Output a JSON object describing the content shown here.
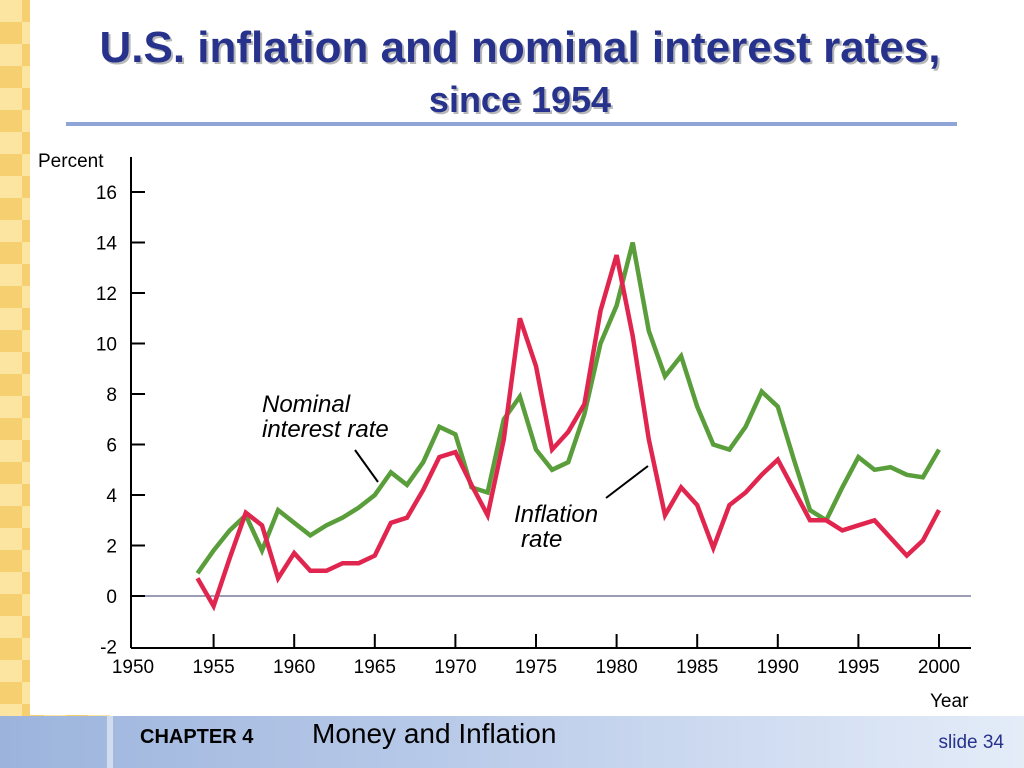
{
  "slide": {
    "title_line1": "U.S. inflation and nominal interest rates,",
    "title_line2": "since 1954",
    "chapter_label": "CHAPTER 4",
    "chapter_title": "Money and Inflation",
    "slide_number": "slide 34"
  },
  "colors": {
    "title": "#26328c",
    "nominal_rate": "#5a9e3c",
    "inflation_rate": "#e0264e",
    "checker_light": "#fbe5a0",
    "checker_dark": "#f6d070"
  },
  "chart_data": {
    "type": "line",
    "title": "",
    "xlabel": "Year",
    "ylabel": "Percent",
    "xlim": [
      1950,
      2002
    ],
    "ylim": [
      -2,
      16
    ],
    "x_ticks": [
      1950,
      1955,
      1960,
      1965,
      1970,
      1975,
      1980,
      1985,
      1990,
      1995,
      2000
    ],
    "x_tick_labels": [
      "1950",
      "1955",
      "1960",
      "1965",
      "1970",
      "1975",
      "1980",
      "1985",
      "1990",
      "1995",
      "2000"
    ],
    "y_ticks": [
      -2,
      0,
      2,
      4,
      6,
      8,
      10,
      12,
      14,
      16
    ],
    "y_tick_labels": [
      "-2",
      "0",
      "2",
      "4",
      "6",
      "8",
      "10",
      "12",
      "14",
      "16"
    ],
    "grid": false,
    "series": [
      {
        "name": "Nominal interest rate",
        "label_line1": "Nominal",
        "label_line2": "interest rate",
        "x": [
          1954,
          1955,
          1956,
          1957,
          1958,
          1959,
          1960,
          1961,
          1962,
          1963,
          1964,
          1965,
          1966,
          1967,
          1968,
          1969,
          1970,
          1971,
          1972,
          1973,
          1974,
          1975,
          1976,
          1977,
          1978,
          1979,
          1980,
          1981,
          1982,
          1983,
          1984,
          1985,
          1986,
          1987,
          1988,
          1989,
          1990,
          1991,
          1992,
          1993,
          1994,
          1995,
          1996,
          1997,
          1998,
          1999,
          2000
        ],
        "y": [
          0.9,
          1.8,
          2.6,
          3.2,
          1.8,
          3.4,
          2.9,
          2.4,
          2.8,
          3.1,
          3.5,
          4.0,
          4.9,
          4.4,
          5.3,
          6.7,
          6.4,
          4.3,
          4.1,
          7.0,
          7.9,
          5.8,
          5.0,
          5.3,
          7.2,
          10.0,
          11.5,
          14.0,
          10.5,
          8.7,
          9.5,
          7.5,
          6.0,
          5.8,
          6.7,
          8.1,
          7.5,
          5.4,
          3.4,
          3.0,
          4.3,
          5.5,
          5.0,
          5.1,
          4.8,
          4.7,
          5.8
        ]
      },
      {
        "name": "Inflation rate",
        "label_line1": "Inflation",
        "label_line2": "rate",
        "x": [
          1954,
          1955,
          1956,
          1957,
          1958,
          1959,
          1960,
          1961,
          1962,
          1963,
          1964,
          1965,
          1966,
          1967,
          1968,
          1969,
          1970,
          1971,
          1972,
          1973,
          1974,
          1975,
          1976,
          1977,
          1978,
          1979,
          1980,
          1981,
          1982,
          1983,
          1984,
          1985,
          1986,
          1987,
          1988,
          1989,
          1990,
          1991,
          1992,
          1993,
          1994,
          1995,
          1996,
          1997,
          1998,
          1999,
          2000
        ],
        "y": [
          0.7,
          -0.4,
          1.5,
          3.3,
          2.8,
          0.7,
          1.7,
          1.0,
          1.0,
          1.3,
          1.3,
          1.6,
          2.9,
          3.1,
          4.2,
          5.5,
          5.7,
          4.4,
          3.2,
          6.2,
          11.0,
          9.1,
          5.8,
          6.5,
          7.6,
          11.3,
          13.5,
          10.3,
          6.2,
          3.2,
          4.3,
          3.6,
          1.9,
          3.6,
          4.1,
          4.8,
          5.4,
          4.2,
          3.0,
          3.0,
          2.6,
          2.8,
          3.0,
          2.3,
          1.6,
          2.2,
          3.4
        ]
      }
    ]
  }
}
